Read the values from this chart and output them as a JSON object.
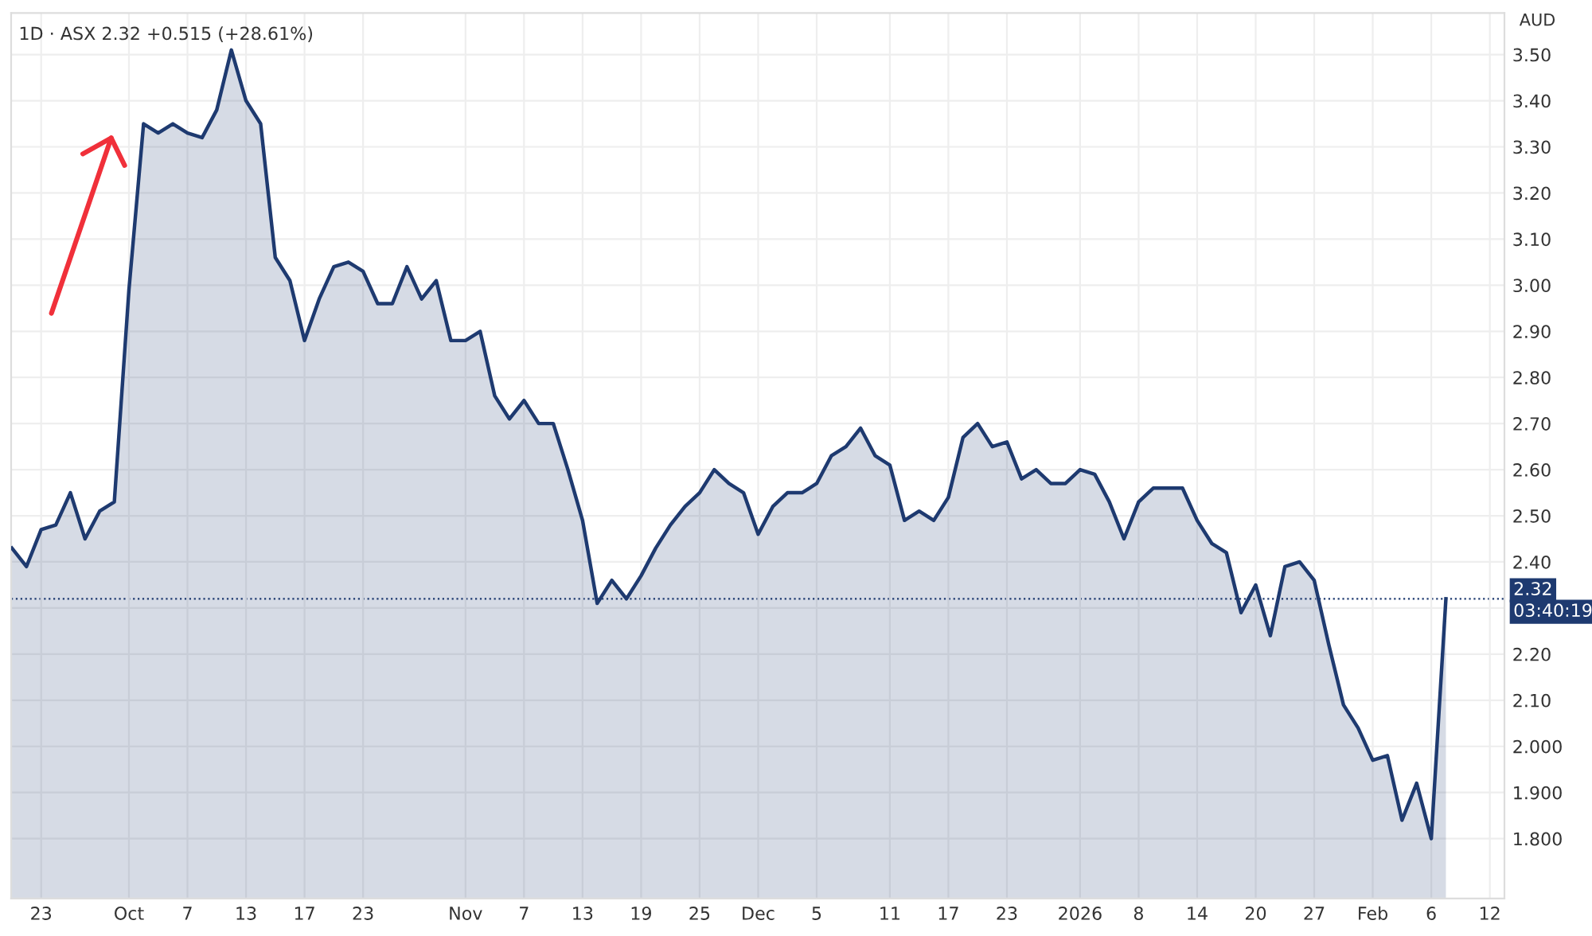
{
  "chart_data": {
    "type": "area",
    "title": "1D · ASX 2.32 +0.515 (+28.61%)",
    "ylabel": "AUD",
    "categories": [
      null,
      null,
      "23",
      null,
      null,
      null,
      null,
      null,
      "Oct",
      null,
      null,
      null,
      "7",
      null,
      null,
      null,
      "13",
      null,
      null,
      null,
      "17",
      null,
      null,
      null,
      "23",
      null,
      null,
      null,
      null,
      null,
      null,
      "Nov",
      null,
      null,
      null,
      "7",
      null,
      null,
      null,
      "13",
      null,
      null,
      null,
      "19",
      null,
      null,
      null,
      "25",
      null,
      null,
      null,
      "Dec",
      null,
      null,
      null,
      "5",
      null,
      null,
      null,
      null,
      "11",
      null,
      null,
      null,
      "17",
      null,
      null,
      null,
      "23",
      null,
      null,
      null,
      null,
      "2026",
      null,
      null,
      null,
      "8",
      null,
      null,
      null,
      "14",
      null,
      null,
      null,
      "20",
      null,
      null,
      null,
      "27",
      null,
      null,
      null,
      "Feb",
      null,
      null,
      null,
      "6",
      null,
      null,
      null,
      "12",
      null
    ],
    "series": [
      {
        "color": "#1e3a70",
        "values": [
          2.43,
          2.39,
          2.47,
          2.48,
          2.55,
          2.45,
          2.51,
          2.53,
          2.99,
          3.35,
          3.33,
          3.35,
          3.33,
          3.32,
          3.38,
          3.51,
          3.4,
          3.35,
          3.06,
          3.01,
          2.88,
          2.97,
          3.04,
          3.05,
          3.03,
          2.96,
          2.96,
          3.04,
          2.97,
          3.01,
          2.88,
          2.88,
          2.9,
          2.76,
          2.71,
          2.75,
          2.7,
          2.7,
          2.6,
          2.49,
          2.31,
          2.36,
          2.32,
          2.37,
          2.43,
          2.48,
          2.52,
          2.55,
          2.6,
          2.57,
          2.55,
          2.46,
          2.52,
          2.55,
          2.55,
          2.57,
          2.63,
          2.65,
          2.69,
          2.63,
          2.61,
          2.49,
          2.51,
          2.49,
          2.54,
          2.67,
          2.7,
          2.65,
          2.66,
          2.58,
          2.6,
          2.57,
          2.57,
          2.6,
          2.59,
          2.53,
          2.45,
          2.53,
          2.56,
          2.56,
          2.56,
          2.49,
          2.44,
          2.42,
          2.29,
          2.35,
          2.24,
          2.39,
          2.4,
          2.36,
          2.22,
          2.09,
          2.04,
          1.97,
          1.98,
          1.84,
          1.92,
          1.8,
          2.32,
          null,
          null,
          null,
          null
        ]
      }
    ],
    "ylim": [
      1.67,
      3.59
    ],
    "yticks": [
      {
        "value": 1.8,
        "label": "1.800"
      },
      {
        "value": 1.9,
        "label": "1.900"
      },
      {
        "value": 2.0,
        "label": "2.000"
      },
      {
        "value": 2.1,
        "label": "2.10"
      },
      {
        "value": 2.2,
        "label": "2.20"
      },
      {
        "value": 2.3,
        "label": null
      },
      {
        "value": 2.4,
        "label": "2.40"
      },
      {
        "value": 2.5,
        "label": "2.50"
      },
      {
        "value": 2.6,
        "label": "2.60"
      },
      {
        "value": 2.7,
        "label": "2.70"
      },
      {
        "value": 2.8,
        "label": "2.80"
      },
      {
        "value": 2.9,
        "label": "2.90"
      },
      {
        "value": 3.0,
        "label": "3.00"
      },
      {
        "value": 3.1,
        "label": "3.10"
      },
      {
        "value": 3.2,
        "label": "3.20"
      },
      {
        "value": 3.3,
        "label": "3.30"
      },
      {
        "value": 3.4,
        "label": "3.40"
      },
      {
        "value": 3.5,
        "label": "3.50"
      }
    ],
    "ref_lines": [
      {
        "axis": "y",
        "value": 2.32,
        "label": "2.32",
        "color": "#1e3a70",
        "line_style": "dotted"
      }
    ],
    "annotations": [
      "03:40:19"
    ],
    "grid": true,
    "legend": false
  }
}
